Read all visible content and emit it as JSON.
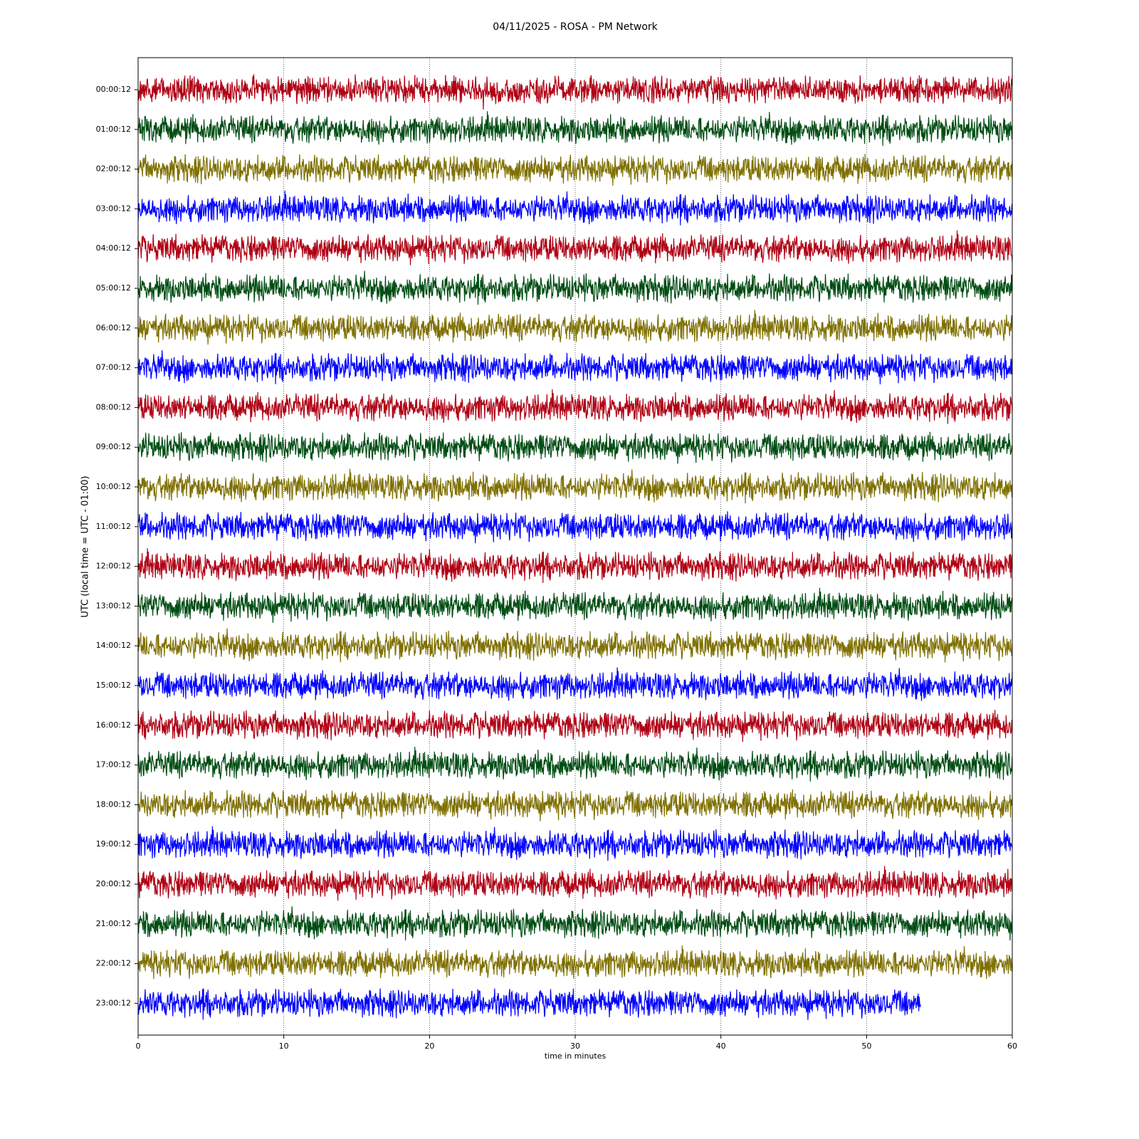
{
  "chart_data": {
    "type": "helicorder",
    "title": "04/11/2025 - ROSA - PM Network",
    "x_label": "time in minutes",
    "y_label": "UTC (local time = UTC - 01:00)",
    "xlim": [
      0,
      60
    ],
    "xticks": [
      0,
      10,
      20,
      30,
      40,
      50,
      60
    ],
    "grid": true,
    "series": [
      {
        "name": "00:00:12",
        "color": "#b00014",
        "x": [
          0,
          60
        ]
      },
      {
        "name": "01:00:12",
        "color": "#004d13",
        "x": [
          0,
          60
        ]
      },
      {
        "name": "02:00:12",
        "color": "#7f7000",
        "x": [
          0,
          60
        ]
      },
      {
        "name": "03:00:12",
        "color": "#0000ff",
        "x": [
          0,
          60
        ]
      },
      {
        "name": "04:00:12",
        "color": "#b00014",
        "x": [
          0,
          60
        ]
      },
      {
        "name": "05:00:12",
        "color": "#004d13",
        "x": [
          0,
          60
        ]
      },
      {
        "name": "06:00:12",
        "color": "#7f7000",
        "x": [
          0,
          60
        ]
      },
      {
        "name": "07:00:12",
        "color": "#0000ff",
        "x": [
          0,
          60
        ]
      },
      {
        "name": "08:00:12",
        "color": "#b00014",
        "x": [
          0,
          60
        ]
      },
      {
        "name": "09:00:12",
        "color": "#004d13",
        "x": [
          0,
          60
        ]
      },
      {
        "name": "10:00:12",
        "color": "#7f7000",
        "x": [
          0,
          60
        ]
      },
      {
        "name": "11:00:12",
        "color": "#0000ff",
        "x": [
          0,
          60
        ]
      },
      {
        "name": "12:00:12",
        "color": "#b00014",
        "x": [
          0,
          60
        ]
      },
      {
        "name": "13:00:12",
        "color": "#004d13",
        "x": [
          0,
          60
        ]
      },
      {
        "name": "14:00:12",
        "color": "#7f7000",
        "x": [
          0,
          60
        ]
      },
      {
        "name": "15:00:12",
        "color": "#0000ff",
        "x": [
          0,
          60
        ]
      },
      {
        "name": "16:00:12",
        "color": "#b00014",
        "x": [
          0,
          60
        ]
      },
      {
        "name": "17:00:12",
        "color": "#004d13",
        "x": [
          0,
          60
        ]
      },
      {
        "name": "18:00:12",
        "color": "#7f7000",
        "x": [
          0,
          60
        ]
      },
      {
        "name": "19:00:12",
        "color": "#0000ff",
        "x": [
          0,
          60
        ]
      },
      {
        "name": "20:00:12",
        "color": "#b00014",
        "x": [
          0,
          60
        ]
      },
      {
        "name": "21:00:12",
        "color": "#004d13",
        "x": [
          0,
          60
        ]
      },
      {
        "name": "22:00:12",
        "color": "#7f7000",
        "x": [
          0,
          60
        ]
      },
      {
        "name": "23:00:12",
        "color": "#0000ff",
        "x": [
          0,
          53.7
        ]
      }
    ]
  }
}
